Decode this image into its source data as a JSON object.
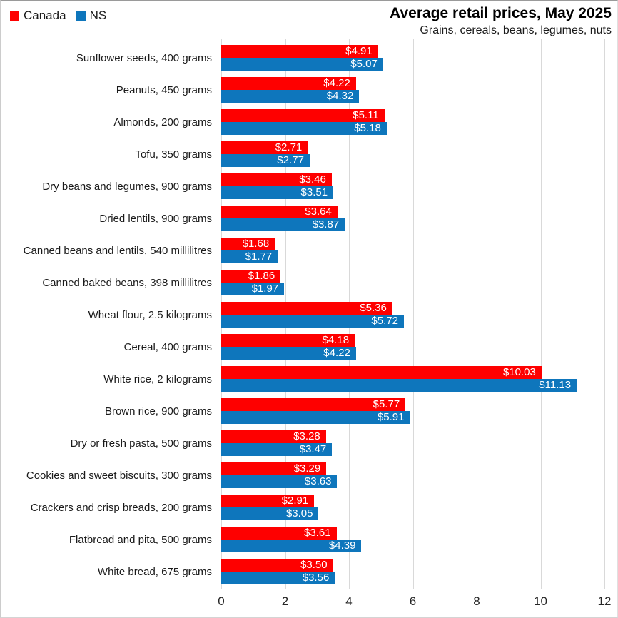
{
  "legend": {
    "items": [
      {
        "label": "Canada",
        "color": "#fe0000"
      },
      {
        "label": "NS",
        "color": "#0e76bc"
      }
    ]
  },
  "chart_data": {
    "type": "bar",
    "orientation": "horizontal",
    "title": "Average retail prices, May 2025",
    "subtitle": "Grains, cereals, beans, legumes, nuts",
    "categories": [
      "Sunflower seeds, 400 grams",
      "Peanuts, 450 grams",
      "Almonds, 200 grams",
      "Tofu, 350 grams",
      "Dry beans and legumes, 900 grams",
      "Dried lentils, 900 grams",
      "Canned beans and lentils, 540 millilitres",
      "Canned baked beans, 398 millilitres",
      "Wheat flour, 2.5 kilograms",
      "Cereal, 400 grams",
      "White rice, 2 kilograms",
      "Brown rice, 900 grams",
      "Dry or fresh pasta, 500 grams",
      "Cookies and sweet biscuits, 300 grams",
      "Crackers and crisp breads, 200 grams",
      "Flatbread and pita, 500 grams",
      "White bread, 675 grams"
    ],
    "series": [
      {
        "name": "Canada",
        "color": "#fe0000",
        "values": [
          4.91,
          4.22,
          5.11,
          2.71,
          3.46,
          3.64,
          1.68,
          1.86,
          5.36,
          4.18,
          10.03,
          5.77,
          3.28,
          3.29,
          2.91,
          3.61,
          3.5
        ],
        "labels": [
          "$4.91",
          "$4.22",
          "$5.11",
          "$2.71",
          "$3.46",
          "$3.64",
          "$1.68",
          "$1.86",
          "$5.36",
          "$4.18",
          "$10.03",
          "$5.77",
          "$3.28",
          "$3.29",
          "$2.91",
          "$3.61",
          "$3.50"
        ]
      },
      {
        "name": "NS",
        "color": "#0e76bc",
        "values": [
          5.07,
          4.32,
          5.18,
          2.77,
          3.51,
          3.87,
          1.77,
          1.97,
          5.72,
          4.22,
          11.13,
          5.91,
          3.47,
          3.63,
          3.05,
          4.39,
          3.56
        ],
        "labels": [
          "$5.07",
          "$4.32",
          "$5.18",
          "$2.77",
          "$3.51",
          "$3.87",
          "$1.77",
          "$1.97",
          "$5.72",
          "$4.22",
          "$11.13",
          "$5.91",
          "$3.47",
          "$3.63",
          "$3.05",
          "$4.39",
          "$3.56"
        ]
      }
    ],
    "xlim": [
      0,
      12
    ],
    "xticks": [
      0,
      2,
      4,
      6,
      8,
      10,
      12
    ],
    "grid": true,
    "grid_color": "#d9d9d9",
    "value_label_color": "#ffffff",
    "legend_position": "top-left"
  }
}
